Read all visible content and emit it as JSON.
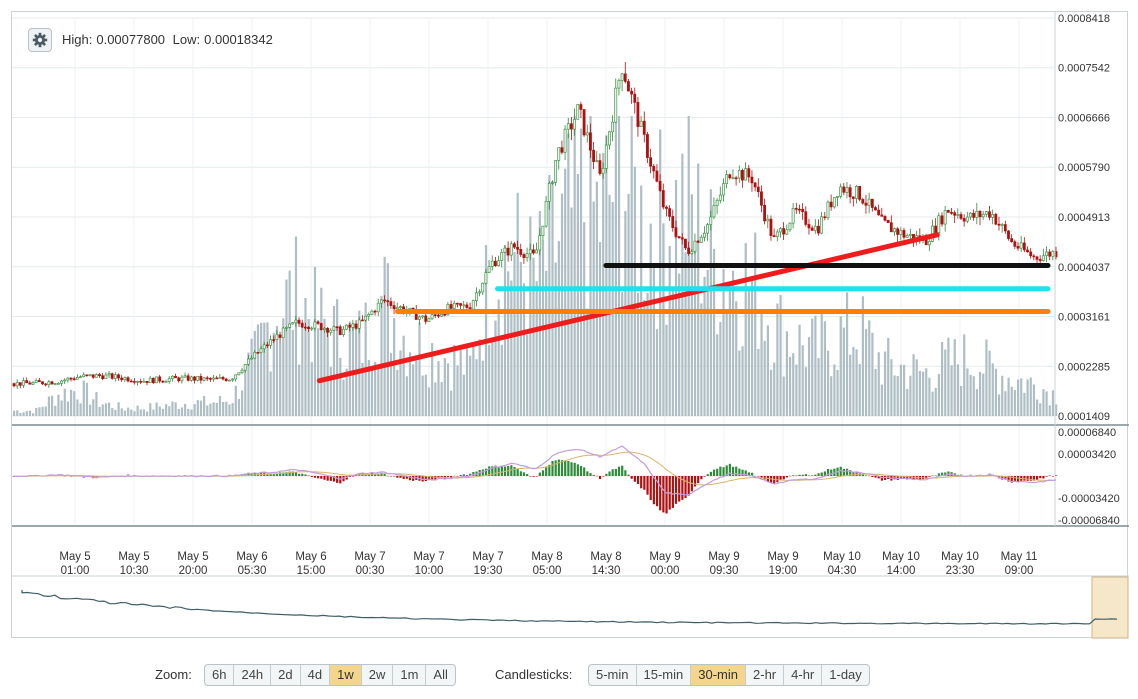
{
  "header": {
    "high_label": "High:",
    "high_value": "0.00077800",
    "low_label": "Low:",
    "low_value": "0.00018342",
    "settings_icon": "gear-icon"
  },
  "chart_data": {
    "type": "candlestick",
    "price_axis_ticks": [
      "0.0008418",
      "0.0007542",
      "0.0006666",
      "0.0005790",
      "0.0004913",
      "0.0004037",
      "0.0003161",
      "0.0002285",
      "0.0001409"
    ],
    "price_range": [
      0.0001409,
      0.0008418
    ],
    "macd_axis_ticks": [
      "0.00006840",
      "0.00003420",
      "-0.00003420",
      "-0.00006840"
    ],
    "macd_range": [
      -6.84e-05,
      6.84e-05
    ],
    "time_axis_ticks": [
      {
        "date": "May 5",
        "time": "01:00"
      },
      {
        "date": "May 5",
        "time": "10:30"
      },
      {
        "date": "May 5",
        "time": "20:00"
      },
      {
        "date": "May 6",
        "time": "05:30"
      },
      {
        "date": "May 6",
        "time": "15:00"
      },
      {
        "date": "May 7",
        "time": "00:30"
      },
      {
        "date": "May 7",
        "time": "10:00"
      },
      {
        "date": "May 7",
        "time": "19:30"
      },
      {
        "date": "May 8",
        "time": "05:00"
      },
      {
        "date": "May 8",
        "time": "14:30"
      },
      {
        "date": "May 9",
        "time": "00:00"
      },
      {
        "date": "May 9",
        "time": "09:30"
      },
      {
        "date": "May 9",
        "time": "19:00"
      },
      {
        "date": "May 10",
        "time": "04:30"
      },
      {
        "date": "May 10",
        "time": "14:00"
      },
      {
        "date": "May 10",
        "time": "23:30"
      },
      {
        "date": "May 11",
        "time": "09:00"
      }
    ],
    "price_trend": [
      0.000198,
      0.000199,
      0.000202,
      0.00021,
      0.000212,
      0.000208,
      0.000203,
      0.000206,
      0.000207,
      0.000205,
      0.000207,
      0.000245,
      0.000278,
      0.000305,
      0.0003,
      0.00029,
      0.000305,
      0.000345,
      0.000328,
      0.00031,
      0.00033,
      0.000335,
      0.00041,
      0.00044,
      0.00042,
      0.0006,
      0.00068,
      0.00056,
      0.00076,
      0.00063,
      0.0005,
      0.00043,
      0.00048,
      0.000575,
      0.00056,
      0.00045,
      0.0005,
      0.00047,
      0.000545,
      0.00053,
      0.00048,
      0.00046,
      0.00045,
      0.000505,
      0.00049,
      0.0005,
      0.000445,
      0.00042,
      0.00043
    ],
    "volume_trend": [
      0.02,
      0.02,
      0.08,
      0.1,
      0.05,
      0.03,
      0.03,
      0.04,
      0.05,
      0.05,
      0.06,
      0.2,
      0.4,
      0.45,
      0.35,
      0.3,
      0.28,
      0.45,
      0.3,
      0.25,
      0.22,
      0.18,
      0.55,
      0.6,
      0.5,
      0.65,
      0.8,
      0.75,
      0.95,
      0.7,
      0.72,
      0.8,
      0.6,
      0.55,
      0.5,
      0.35,
      0.28,
      0.25,
      0.3,
      0.32,
      0.2,
      0.18,
      0.16,
      0.2,
      0.22,
      0.18,
      0.14,
      0.12,
      0.08
    ],
    "macd_trend": [
      0.0,
      0.0,
      2e-06,
      0.0,
      -2e-06,
      0.0,
      0.0,
      0.0,
      0.0,
      0.0,
      0.0,
      4e-06,
      6e-06,
      1e-05,
      4e-06,
      -4e-06,
      4e-06,
      6e-06,
      0.0,
      -6e-06,
      -4e-06,
      0.0,
      1.2e-05,
      2e-05,
      1e-05,
      3.6e-05,
      4.2e-05,
      3e-05,
      4.6e-05,
      2e-05,
      -2.6e-05,
      -3e-05,
      -1e-05,
      4e-06,
      0.0,
      -1.2e-05,
      -6e-06,
      -4e-06,
      8e-06,
      6e-06,
      -2e-06,
      -4e-06,
      -6e-06,
      2e-06,
      0.0,
      2e-06,
      -8e-06,
      -1e-05,
      -6e-06
    ],
    "annotation_lines": [
      {
        "name": "red-trend-line",
        "color": "#ee1c1c",
        "from": {
          "t": 0.295,
          "price": 0.000203
        },
        "to": {
          "t": 0.888,
          "price": 0.00046
        }
      },
      {
        "name": "black-level-line",
        "color": "#111111",
        "from": {
          "t": 0.57,
          "price": 0.000406
        },
        "to": {
          "t": 1.0,
          "price": 0.000406
        }
      },
      {
        "name": "cyan-level-line",
        "color": "#1ee0f0",
        "from": {
          "t": 0.466,
          "price": 0.000365
        },
        "to": {
          "t": 1.0,
          "price": 0.000365
        }
      },
      {
        "name": "orange-level-line",
        "color": "#ff8000",
        "from": {
          "t": 0.37,
          "price": 0.000325
        },
        "to": {
          "t": 1.0,
          "price": 0.000325
        }
      }
    ],
    "colors": {
      "up": "#2e8b3a",
      "down": "#b01010",
      "volume": "#aebec4",
      "macd_line": "#c69cdc",
      "signal_line": "#d6b66a",
      "grid": "#e4eaed",
      "navigator": "#3f5f66"
    }
  },
  "controls": {
    "zoom_label": "Zoom:",
    "zoom_options": [
      "6h",
      "24h",
      "2d",
      "4d",
      "1w",
      "2w",
      "1m",
      "All"
    ],
    "zoom_active": "1w",
    "candle_label": "Candlesticks:",
    "candle_options": [
      "5-min",
      "15-min",
      "30-min",
      "2-hr",
      "4-hr",
      "1-day"
    ],
    "candle_active": "30-min"
  }
}
